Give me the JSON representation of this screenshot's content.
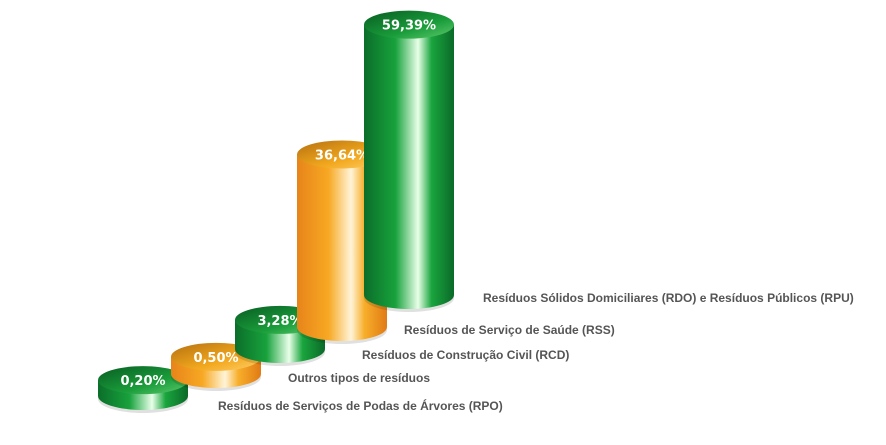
{
  "chart_data": {
    "type": "bar",
    "style": "3d-cylinder",
    "categories": [
      "Resíduos de Serviços de Podas de Árvores (RPO)",
      "Outros tipos de resíduos",
      "Resíduos de Construção Civil (RCD)",
      "Resíduos de Serviço de Saúde (RSS)",
      "Resíduos Sólidos Domiciliares (RDO) e Resíduos Públicos (RPU)"
    ],
    "values": [
      0.2,
      0.5,
      3.28,
      36.64,
      59.39
    ],
    "data_labels": [
      "0,20%",
      "0,50%",
      "3,28%",
      "36,64%",
      "59,39%"
    ],
    "colors": [
      "green",
      "orange",
      "green",
      "orange",
      "green"
    ],
    "palette": {
      "green": "#1a9a3a",
      "orange": "#f5a21e"
    },
    "unit": "%",
    "grid": false,
    "axes": false
  }
}
